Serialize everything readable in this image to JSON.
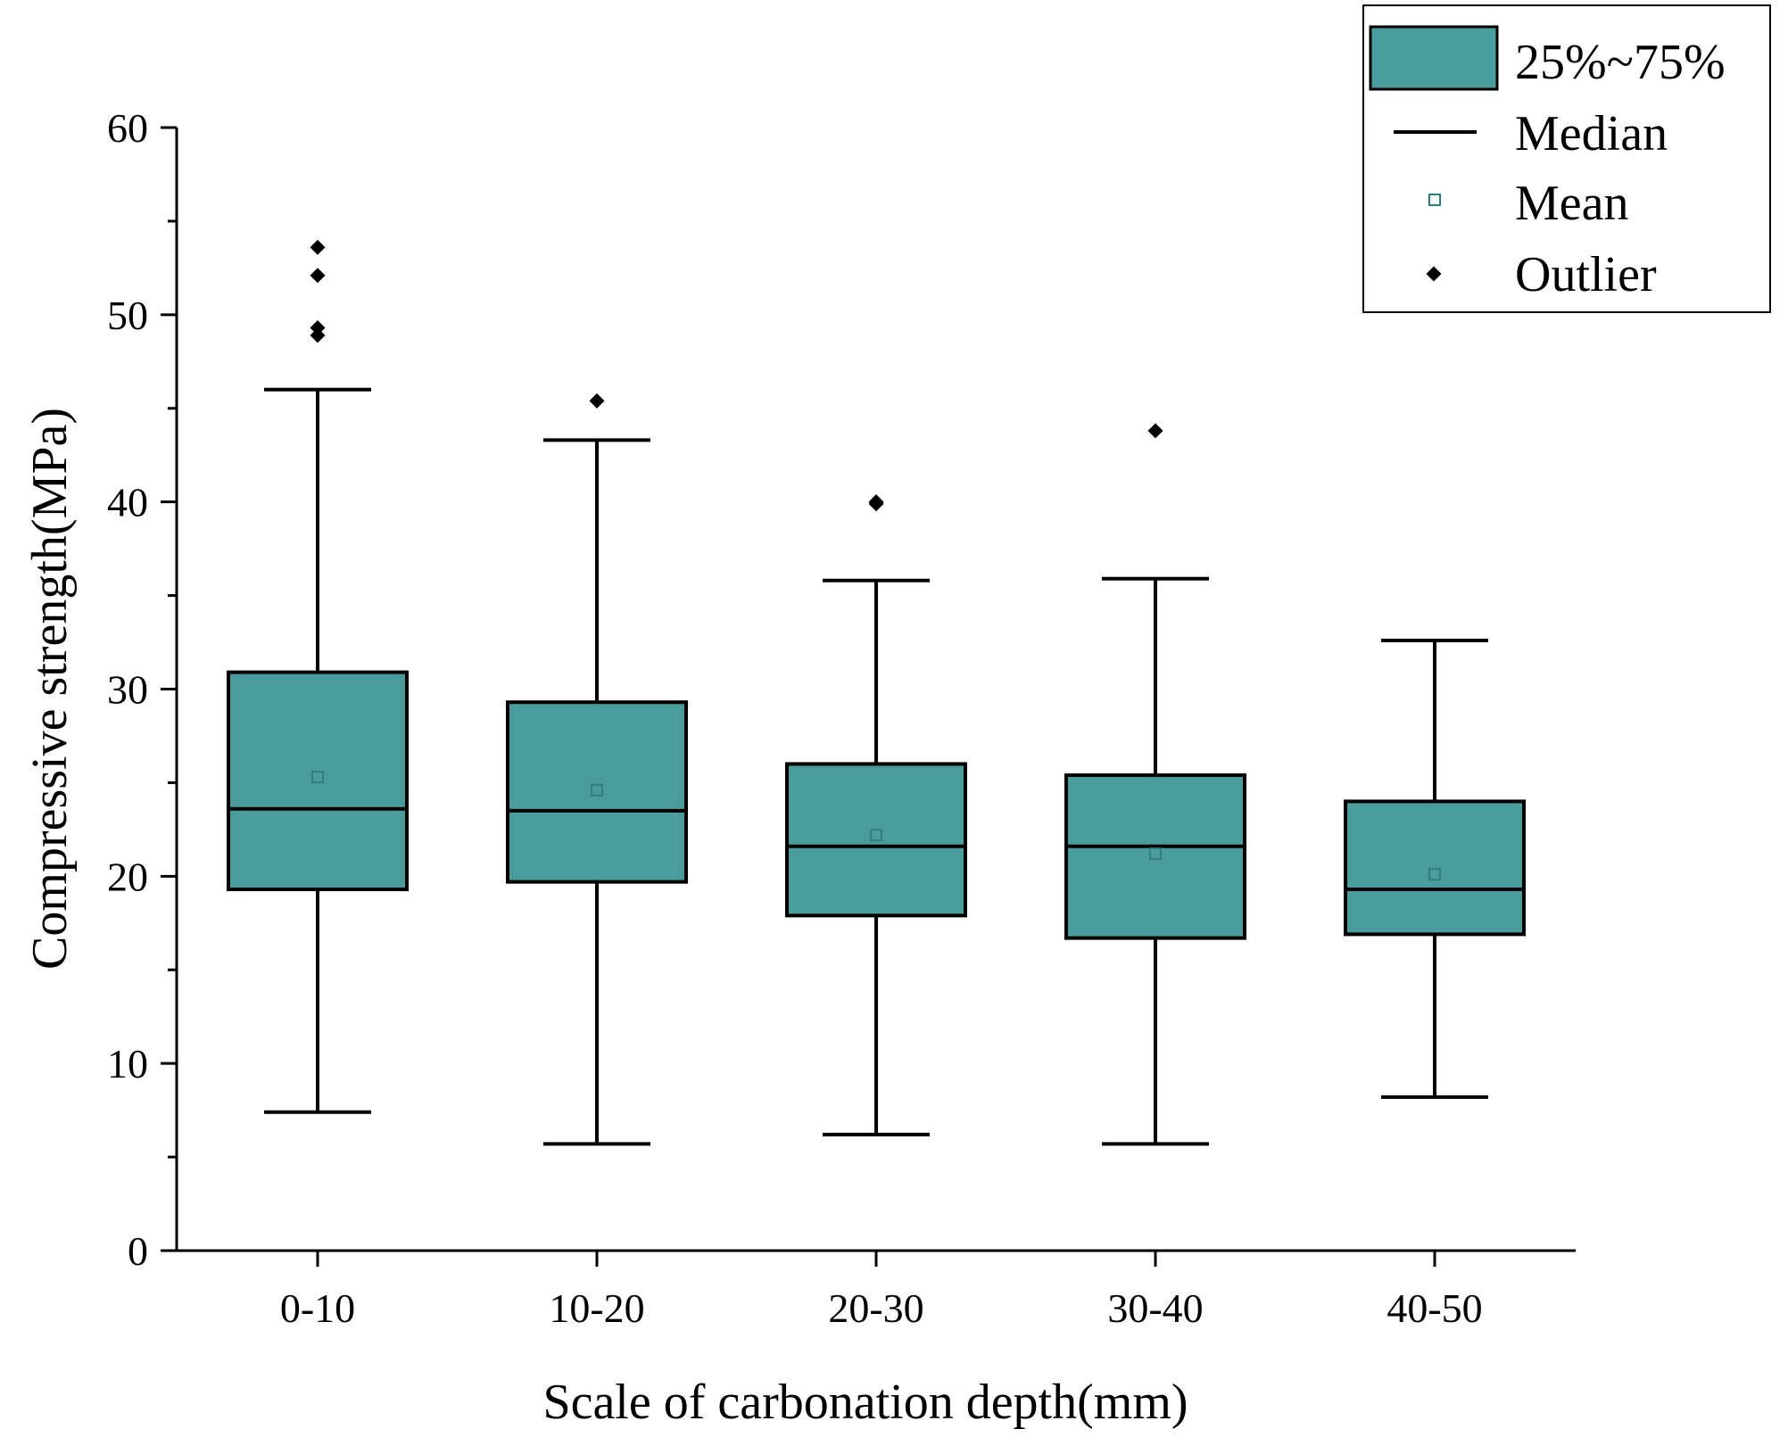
{
  "chart_data": {
    "type": "box",
    "title": "",
    "xlabel": "Scale of carbonation depth(mm)",
    "ylabel": "Compressive strength(MPa)",
    "ylim": [
      0,
      60
    ],
    "yticks": [
      "0",
      "10",
      "20",
      "30",
      "40",
      "50",
      "60"
    ],
    "categories": [
      "0-10",
      "10-20",
      "20-30",
      "30-40",
      "40-50"
    ],
    "boxes": [
      {
        "q1": 19.3,
        "q3": 30.9,
        "median": 23.6,
        "mean": 25.3,
        "whisker_low": 7.4,
        "whisker_high": 46.0,
        "outliers": [
          48.9,
          49.3,
          52.1,
          53.6
        ]
      },
      {
        "q1": 19.7,
        "q3": 29.3,
        "median": 23.5,
        "mean": 24.6,
        "whisker_low": 5.7,
        "whisker_high": 43.3,
        "outliers": [
          45.4
        ]
      },
      {
        "q1": 17.9,
        "q3": 26.0,
        "median": 21.6,
        "mean": 22.2,
        "whisker_low": 6.2,
        "whisker_high": 35.8,
        "outliers": [
          39.9,
          40.0
        ]
      },
      {
        "q1": 16.7,
        "q3": 25.4,
        "median": 21.6,
        "mean": 21.2,
        "whisker_low": 5.7,
        "whisker_high": 35.9,
        "outliers": [
          43.8
        ]
      },
      {
        "q1": 16.9,
        "q3": 24.0,
        "median": 19.3,
        "mean": 20.1,
        "whisker_low": 8.2,
        "whisker_high": 32.6,
        "outliers": []
      }
    ],
    "legend": {
      "position": "top-right",
      "entries": [
        {
          "key": "box",
          "label": "25%~75%"
        },
        {
          "key": "median",
          "label": "Median"
        },
        {
          "key": "mean",
          "label": "Mean"
        },
        {
          "key": "outlier",
          "label": "Outlier"
        }
      ]
    },
    "colors": {
      "box_fill": "#4a9b9b",
      "line": "#000000",
      "mean_marker": "#2f7f7f"
    }
  }
}
